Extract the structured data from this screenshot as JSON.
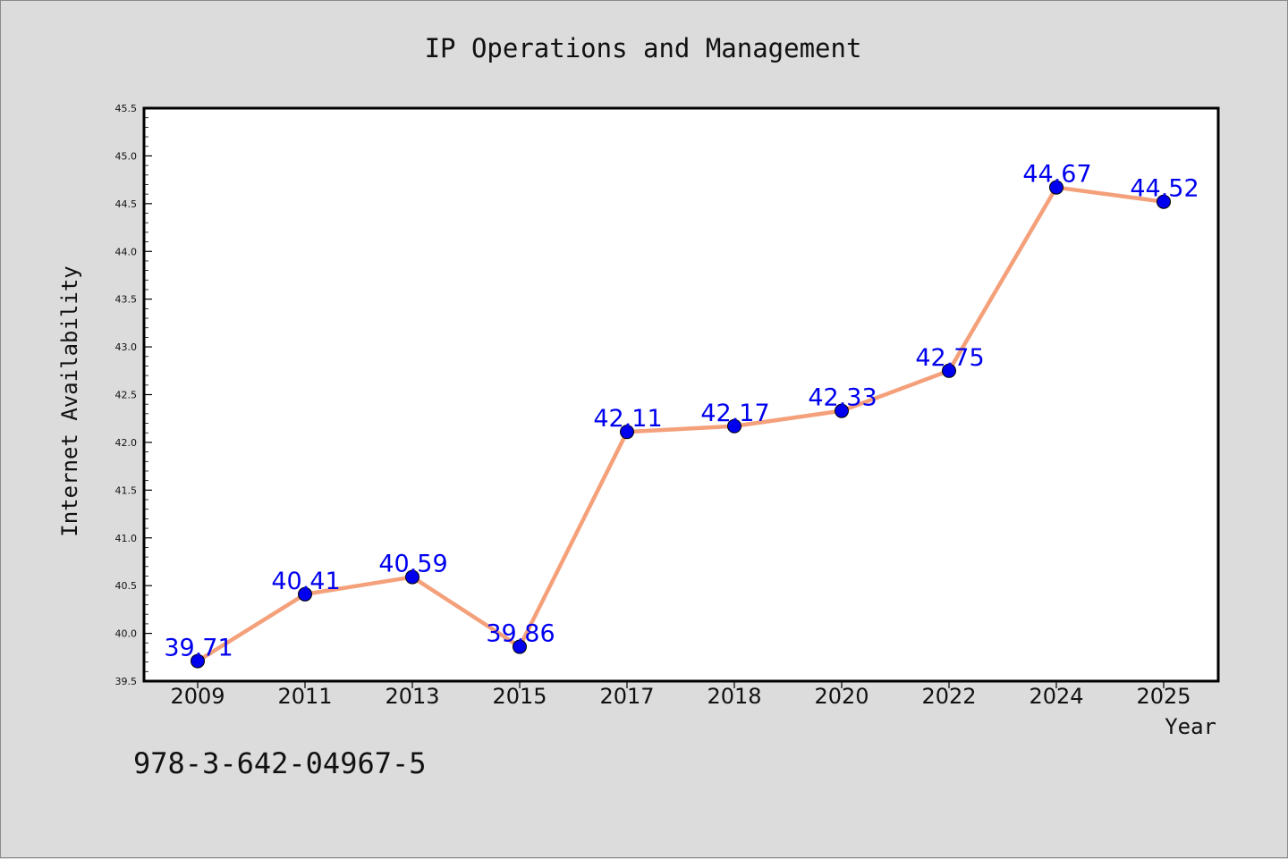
{
  "chart_data": {
    "type": "line",
    "title": "IP Operations and Management",
    "xlabel": "Year",
    "ylabel": "Internet Availability",
    "categories": [
      "2009",
      "2011",
      "2013",
      "2015",
      "2017",
      "2018",
      "2020",
      "2022",
      "2024",
      "2025"
    ],
    "series": [
      {
        "values": [
          39.71,
          40.41,
          40.59,
          39.86,
          42.11,
          42.17,
          42.33,
          42.75,
          44.67,
          44.52
        ],
        "line_color": "#f4a07a",
        "marker_color": "#0000ee",
        "label_color": "#0000ee"
      }
    ],
    "data_labels": [
      "39.71",
      "40.41",
      "40.59",
      "39.86",
      "42.11",
      "42.17",
      "42.33",
      "42.75",
      "44.67",
      "44.52"
    ],
    "ylim": [
      39.5,
      45.5
    ],
    "yticks": [
      "39.5",
      "40.0",
      "40.5",
      "41.0",
      "41.5",
      "42.0",
      "42.5",
      "43.0",
      "43.5",
      "44.0",
      "44.5",
      "45.0",
      "45.5"
    ],
    "grid": false,
    "legend": false
  },
  "footer_text": "978-3-642-04967-5"
}
